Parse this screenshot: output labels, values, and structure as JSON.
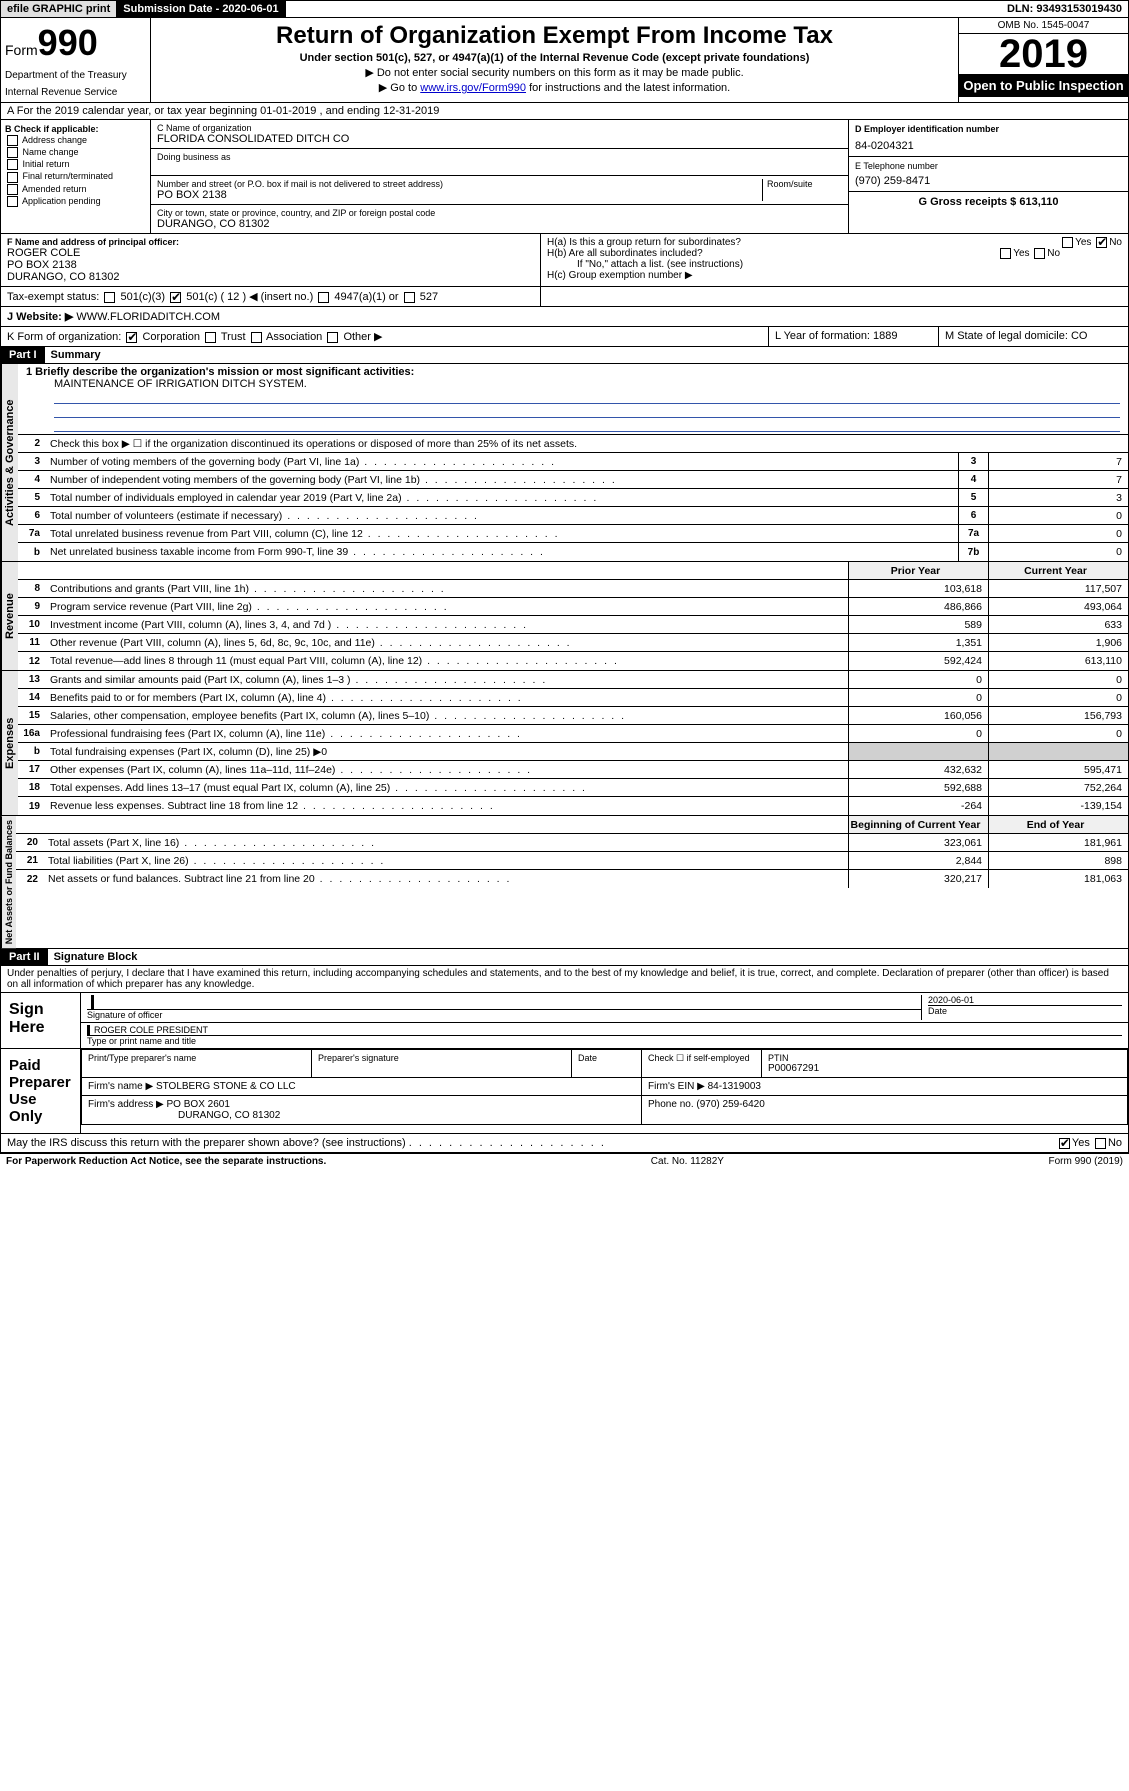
{
  "topbar": {
    "efile": "efile GRAPHIC print",
    "sub_label": "Submission Date - 2020-06-01",
    "dln": "DLN: 93493153019430"
  },
  "header": {
    "form_label": "Form",
    "form_num": "990",
    "dept": "Department of the Treasury",
    "irs": "Internal Revenue Service",
    "title": "Return of Organization Exempt From Income Tax",
    "subtitle": "Under section 501(c), 527, or 4947(a)(1) of the Internal Revenue Code (except private foundations)",
    "note1": "▶ Do not enter social security numbers on this form as it may be made public.",
    "note2_pre": "▶ Go to ",
    "note2_link": "www.irs.gov/Form990",
    "note2_post": " for instructions and the latest information.",
    "omb": "OMB No. 1545-0047",
    "year": "2019",
    "open": "Open to Public Inspection"
  },
  "row_a": "A For the 2019 calendar year, or tax year beginning 01-01-2019   , and ending 12-31-2019",
  "col_b": {
    "header": "B Check if applicable:",
    "items": [
      "Address change",
      "Name change",
      "Initial return",
      "Final return/terminated",
      "Amended return",
      "Application pending"
    ]
  },
  "col_c": {
    "name_label": "C Name of organization",
    "name": "FLORIDA CONSOLIDATED DITCH CO",
    "dba_label": "Doing business as",
    "addr_label": "Number and street (or P.O. box if mail is not delivered to street address)",
    "room_label": "Room/suite",
    "addr": "PO BOX 2138",
    "city_label": "City or town, state or province, country, and ZIP or foreign postal code",
    "city": "DURANGO, CO  81302"
  },
  "col_d": {
    "ein_label": "D Employer identification number",
    "ein": "84-0204321",
    "tel_label": "E Telephone number",
    "tel": "(970) 259-8471",
    "gross_label": "G Gross receipts $ 613,110"
  },
  "row_f": {
    "label": "F  Name and address of principal officer:",
    "name": "ROGER COLE",
    "addr1": "PO BOX 2138",
    "addr2": "DURANGO, CO  81302"
  },
  "row_h": {
    "ha": "H(a)  Is this a group return for subordinates?",
    "hb": "H(b)  Are all subordinates included?",
    "hb_note": "If \"No,\" attach a list. (see instructions)",
    "hc": "H(c)  Group exemption number ▶"
  },
  "tax_status": {
    "label": "Tax-exempt status:",
    "opt1": "501(c)(3)",
    "opt2": "501(c) ( 12 ) ◀ (insert no.)",
    "opt3": "4947(a)(1) or",
    "opt4": "527"
  },
  "website": {
    "label": "J   Website: ▶",
    "val": "WWW.FLORIDADITCH.COM"
  },
  "row_k": {
    "label": "K Form of organization:",
    "opts": [
      "Corporation",
      "Trust",
      "Association",
      "Other ▶"
    ],
    "l": "L Year of formation: 1889",
    "m": "M State of legal domicile: CO"
  },
  "part1": {
    "hdr": "Part I",
    "title": "Summary",
    "line1_label": "1  Briefly describe the organization's mission or most significant activities:",
    "mission": "MAINTENANCE OF IRRIGATION DITCH SYSTEM.",
    "line2": "Check this box ▶ ☐  if the organization discontinued its operations or disposed of more than 25% of its net assets.",
    "prior_hdr": "Prior Year",
    "curr_hdr": "Current Year",
    "boy_hdr": "Beginning of Current Year",
    "eoy_hdr": "End of Year"
  },
  "gov_lines": [
    {
      "n": "3",
      "d": "Number of voting members of the governing body (Part VI, line 1a)",
      "box": "3",
      "v": "7"
    },
    {
      "n": "4",
      "d": "Number of independent voting members of the governing body (Part VI, line 1b)",
      "box": "4",
      "v": "7"
    },
    {
      "n": "5",
      "d": "Total number of individuals employed in calendar year 2019 (Part V, line 2a)",
      "box": "5",
      "v": "3"
    },
    {
      "n": "6",
      "d": "Total number of volunteers (estimate if necessary)",
      "box": "6",
      "v": "0"
    },
    {
      "n": "7a",
      "d": "Total unrelated business revenue from Part VIII, column (C), line 12",
      "box": "7a",
      "v": "0"
    },
    {
      "n": "b",
      "d": "Net unrelated business taxable income from Form 990-T, line 39",
      "box": "7b",
      "v": "0"
    }
  ],
  "rev_lines": [
    {
      "n": "8",
      "d": "Contributions and grants (Part VIII, line 1h)",
      "p": "103,618",
      "c": "117,507"
    },
    {
      "n": "9",
      "d": "Program service revenue (Part VIII, line 2g)",
      "p": "486,866",
      "c": "493,064"
    },
    {
      "n": "10",
      "d": "Investment income (Part VIII, column (A), lines 3, 4, and 7d )",
      "p": "589",
      "c": "633"
    },
    {
      "n": "11",
      "d": "Other revenue (Part VIII, column (A), lines 5, 6d, 8c, 9c, 10c, and 11e)",
      "p": "1,351",
      "c": "1,906"
    },
    {
      "n": "12",
      "d": "Total revenue—add lines 8 through 11 (must equal Part VIII, column (A), line 12)",
      "p": "592,424",
      "c": "613,110"
    }
  ],
  "exp_lines": [
    {
      "n": "13",
      "d": "Grants and similar amounts paid (Part IX, column (A), lines 1–3 )",
      "p": "0",
      "c": "0"
    },
    {
      "n": "14",
      "d": "Benefits paid to or for members (Part IX, column (A), line 4)",
      "p": "0",
      "c": "0"
    },
    {
      "n": "15",
      "d": "Salaries, other compensation, employee benefits (Part IX, column (A), lines 5–10)",
      "p": "160,056",
      "c": "156,793"
    },
    {
      "n": "16a",
      "d": "Professional fundraising fees (Part IX, column (A), line 11e)",
      "p": "0",
      "c": "0"
    },
    {
      "n": "b",
      "d": "Total fundraising expenses (Part IX, column (D), line 25) ▶0",
      "p": "",
      "c": "",
      "shade": true
    },
    {
      "n": "17",
      "d": "Other expenses (Part IX, column (A), lines 11a–11d, 11f–24e)",
      "p": "432,632",
      "c": "595,471"
    },
    {
      "n": "18",
      "d": "Total expenses. Add lines 13–17 (must equal Part IX, column (A), line 25)",
      "p": "592,688",
      "c": "752,264"
    },
    {
      "n": "19",
      "d": "Revenue less expenses. Subtract line 18 from line 12",
      "p": "-264",
      "c": "-139,154"
    }
  ],
  "net_lines": [
    {
      "n": "20",
      "d": "Total assets (Part X, line 16)",
      "p": "323,061",
      "c": "181,961"
    },
    {
      "n": "21",
      "d": "Total liabilities (Part X, line 26)",
      "p": "2,844",
      "c": "898"
    },
    {
      "n": "22",
      "d": "Net assets or fund balances. Subtract line 21 from line 20",
      "p": "320,217",
      "c": "181,063"
    }
  ],
  "part2": {
    "hdr": "Part II",
    "title": "Signature Block",
    "penalties": "Under penalties of perjury, I declare that I have examined this return, including accompanying schedules and statements, and to the best of my knowledge and belief, it is true, correct, and complete. Declaration of preparer (other than officer) is based on all information of which preparer has any knowledge."
  },
  "sign": {
    "here": "Sign Here",
    "sig_label": "Signature of officer",
    "date": "2020-06-01",
    "date_label": "Date",
    "name": "ROGER COLE PRESIDENT",
    "name_label": "Type or print name and title"
  },
  "paid": {
    "label": "Paid Preparer Use Only",
    "prep_name_label": "Print/Type preparer's name",
    "prep_sig_label": "Preparer's signature",
    "date_label": "Date",
    "check_label": "Check ☐ if self-employed",
    "ptin_label": "PTIN",
    "ptin": "P00067291",
    "firm_name_label": "Firm's name    ▶",
    "firm_name": "STOLBERG STONE & CO LLC",
    "firm_ein_label": "Firm's EIN ▶",
    "firm_ein": "84-1319003",
    "firm_addr_label": "Firm's address ▶",
    "firm_addr": "PO BOX 2601",
    "firm_city": "DURANGO, CO  81302",
    "phone_label": "Phone no.",
    "phone": "(970) 259-6420"
  },
  "discuss": "May the IRS discuss this return with the preparer shown above? (see instructions)",
  "footer": {
    "left": "For Paperwork Reduction Act Notice, see the separate instructions.",
    "mid": "Cat. No. 11282Y",
    "right": "Form 990 (2019)"
  },
  "tabs": {
    "gov": "Activities & Governance",
    "rev": "Revenue",
    "exp": "Expenses",
    "net": "Net Assets or Fund Balances"
  },
  "yes": "Yes",
  "no": "No"
}
